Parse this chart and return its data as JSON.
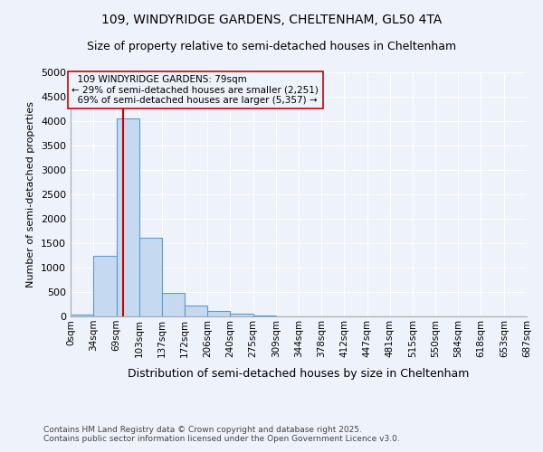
{
  "title1": "109, WINDYRIDGE GARDENS, CHELTENHAM, GL50 4TA",
  "title2": "Size of property relative to semi-detached houses in Cheltenham",
  "xlabel": "Distribution of semi-detached houses by size in Cheltenham",
  "ylabel": "Number of semi-detached properties",
  "bin_edges": [
    0,
    34,
    69,
    103,
    137,
    172,
    206,
    240,
    275,
    309,
    344,
    378,
    412,
    447,
    481,
    515,
    550,
    584,
    618,
    653,
    687
  ],
  "bin_labels": [
    "0sqm",
    "34sqm",
    "69sqm",
    "103sqm",
    "137sqm",
    "172sqm",
    "206sqm",
    "240sqm",
    "275sqm",
    "309sqm",
    "344sqm",
    "378sqm",
    "412sqm",
    "447sqm",
    "481sqm",
    "515sqm",
    "550sqm",
    "584sqm",
    "618sqm",
    "653sqm",
    "687sqm"
  ],
  "bar_heights": [
    30,
    1250,
    4050,
    1620,
    480,
    225,
    120,
    55,
    20,
    5,
    0,
    0,
    0,
    0,
    0,
    0,
    0,
    0,
    0,
    0
  ],
  "bar_color": "#c5d9f0",
  "bar_edge_color": "#5b9bd5",
  "property_value": 79,
  "property_label": "109 WINDYRIDGE GARDENS: 79sqm",
  "pct_smaller": 29,
  "n_smaller": 2251,
  "pct_larger": 69,
  "n_larger": 5357,
  "vline_color": "#cc0000",
  "annotation_box_color": "#cc0000",
  "ylim": [
    0,
    5000
  ],
  "yticks": [
    0,
    500,
    1000,
    1500,
    2000,
    2500,
    3000,
    3500,
    4000,
    4500,
    5000
  ],
  "footer1": "Contains HM Land Registry data © Crown copyright and database right 2025.",
  "footer2": "Contains public sector information licensed under the Open Government Licence v3.0.",
  "background_color": "#eef2fb"
}
